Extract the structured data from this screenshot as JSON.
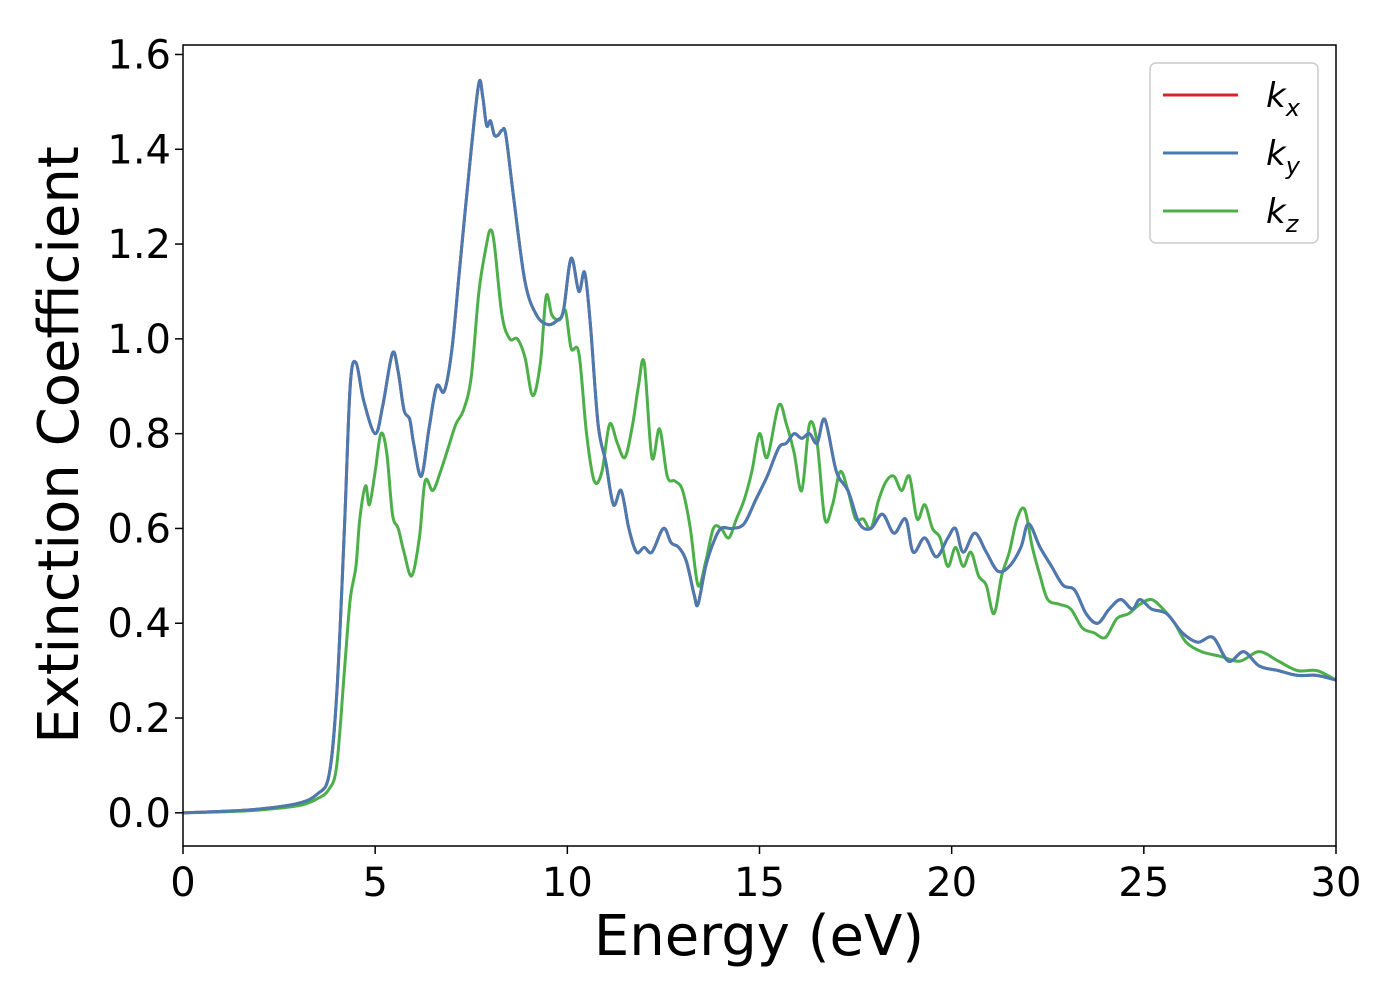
{
  "chart_data": {
    "type": "line",
    "xlabel": "Energy (eV)",
    "ylabel": "Extinction Coefficient",
    "xlim": [
      0,
      30
    ],
    "ylim": [
      -0.07,
      1.62
    ],
    "xticks": [
      0,
      5,
      10,
      15,
      20,
      25,
      30
    ],
    "yticks": [
      0.0,
      0.2,
      0.4,
      0.6,
      0.8,
      1.0,
      1.2,
      1.4,
      1.6
    ],
    "xtick_labels": [
      "0",
      "5",
      "10",
      "15",
      "20",
      "25",
      "30"
    ],
    "ytick_labels": [
      "0.0",
      "0.2",
      "0.4",
      "0.6",
      "0.8",
      "1.0",
      "1.2",
      "1.4",
      "1.6"
    ],
    "grid": false,
    "legend_position": "top-right",
    "series": [
      {
        "name": "k",
        "subscript": "x",
        "color": "#d62728",
        "x": [
          0,
          1,
          2,
          3,
          3.5,
          3.8,
          4.0,
          4.2,
          4.35,
          4.5,
          4.7,
          5.0,
          5.2,
          5.45,
          5.6,
          5.75,
          5.9,
          6.0,
          6.2,
          6.4,
          6.6,
          6.8,
          7.0,
          7.2,
          7.5,
          7.7,
          7.8,
          7.9,
          8.0,
          8.1,
          8.2,
          8.3,
          8.4,
          8.6,
          8.9,
          9.2,
          9.5,
          9.75,
          9.9,
          10.1,
          10.3,
          10.45,
          10.6,
          10.8,
          11.0,
          11.2,
          11.4,
          11.6,
          11.8,
          12.0,
          12.2,
          12.5,
          12.7,
          12.9,
          13.1,
          13.3,
          13.4,
          13.6,
          13.8,
          14.0,
          14.3,
          14.6,
          14.9,
          15.2,
          15.5,
          15.7,
          15.9,
          16.1,
          16.3,
          16.5,
          16.7,
          17.0,
          17.3,
          17.6,
          17.9,
          18.2,
          18.5,
          18.8,
          19.0,
          19.3,
          19.6,
          19.9,
          20.1,
          20.3,
          20.6,
          20.9,
          21.2,
          21.5,
          21.8,
          22.0,
          22.3,
          22.6,
          22.9,
          23.2,
          23.5,
          23.8,
          24.1,
          24.4,
          24.7,
          24.9,
          25.2,
          25.6,
          26.0,
          26.4,
          26.8,
          27.2,
          27.6,
          28.0,
          28.5,
          29.0,
          29.5,
          30.0
        ],
        "y": [
          0.0,
          0.003,
          0.008,
          0.02,
          0.04,
          0.08,
          0.25,
          0.6,
          0.9,
          0.95,
          0.87,
          0.8,
          0.86,
          0.97,
          0.93,
          0.85,
          0.83,
          0.78,
          0.71,
          0.81,
          0.9,
          0.89,
          0.98,
          1.15,
          1.4,
          1.54,
          1.51,
          1.45,
          1.46,
          1.43,
          1.43,
          1.44,
          1.43,
          1.3,
          1.12,
          1.05,
          1.03,
          1.04,
          1.06,
          1.17,
          1.1,
          1.14,
          1.03,
          0.82,
          0.74,
          0.65,
          0.68,
          0.6,
          0.55,
          0.56,
          0.55,
          0.6,
          0.57,
          0.56,
          0.53,
          0.46,
          0.44,
          0.52,
          0.57,
          0.6,
          0.6,
          0.61,
          0.66,
          0.71,
          0.77,
          0.78,
          0.8,
          0.79,
          0.8,
          0.78,
          0.83,
          0.72,
          0.68,
          0.61,
          0.6,
          0.63,
          0.59,
          0.62,
          0.55,
          0.58,
          0.54,
          0.58,
          0.6,
          0.55,
          0.59,
          0.55,
          0.51,
          0.52,
          0.56,
          0.61,
          0.56,
          0.52,
          0.48,
          0.47,
          0.42,
          0.4,
          0.43,
          0.45,
          0.43,
          0.45,
          0.43,
          0.42,
          0.38,
          0.36,
          0.37,
          0.32,
          0.34,
          0.31,
          0.3,
          0.29,
          0.29,
          0.28
        ]
      },
      {
        "name": "k",
        "subscript": "y",
        "color": "#4a7ab0",
        "x": [
          0,
          1,
          2,
          3,
          3.5,
          3.8,
          4.0,
          4.2,
          4.35,
          4.5,
          4.7,
          5.0,
          5.2,
          5.45,
          5.6,
          5.75,
          5.9,
          6.0,
          6.2,
          6.4,
          6.6,
          6.8,
          7.0,
          7.2,
          7.5,
          7.7,
          7.8,
          7.9,
          8.0,
          8.1,
          8.2,
          8.3,
          8.4,
          8.6,
          8.9,
          9.2,
          9.5,
          9.75,
          9.9,
          10.1,
          10.3,
          10.45,
          10.6,
          10.8,
          11.0,
          11.2,
          11.4,
          11.6,
          11.8,
          12.0,
          12.2,
          12.5,
          12.7,
          12.9,
          13.1,
          13.3,
          13.4,
          13.6,
          13.8,
          14.0,
          14.3,
          14.6,
          14.9,
          15.2,
          15.5,
          15.7,
          15.9,
          16.1,
          16.3,
          16.5,
          16.7,
          17.0,
          17.3,
          17.6,
          17.9,
          18.2,
          18.5,
          18.8,
          19.0,
          19.3,
          19.6,
          19.9,
          20.1,
          20.3,
          20.6,
          20.9,
          21.2,
          21.5,
          21.8,
          22.0,
          22.3,
          22.6,
          22.9,
          23.2,
          23.5,
          23.8,
          24.1,
          24.4,
          24.7,
          24.9,
          25.2,
          25.6,
          26.0,
          26.4,
          26.8,
          27.2,
          27.6,
          28.0,
          28.5,
          29.0,
          29.5,
          30.0
        ],
        "y": [
          0.0,
          0.003,
          0.008,
          0.02,
          0.04,
          0.08,
          0.25,
          0.6,
          0.9,
          0.95,
          0.87,
          0.8,
          0.86,
          0.97,
          0.93,
          0.85,
          0.83,
          0.78,
          0.71,
          0.81,
          0.9,
          0.89,
          0.98,
          1.15,
          1.4,
          1.54,
          1.51,
          1.45,
          1.46,
          1.43,
          1.43,
          1.44,
          1.43,
          1.3,
          1.12,
          1.05,
          1.03,
          1.04,
          1.06,
          1.17,
          1.1,
          1.14,
          1.03,
          0.82,
          0.74,
          0.65,
          0.68,
          0.6,
          0.55,
          0.56,
          0.55,
          0.6,
          0.57,
          0.56,
          0.53,
          0.46,
          0.44,
          0.52,
          0.57,
          0.6,
          0.6,
          0.61,
          0.66,
          0.71,
          0.77,
          0.78,
          0.8,
          0.79,
          0.8,
          0.78,
          0.83,
          0.72,
          0.68,
          0.61,
          0.6,
          0.63,
          0.59,
          0.62,
          0.55,
          0.58,
          0.54,
          0.58,
          0.6,
          0.55,
          0.59,
          0.55,
          0.51,
          0.52,
          0.56,
          0.61,
          0.56,
          0.52,
          0.48,
          0.47,
          0.42,
          0.4,
          0.43,
          0.45,
          0.43,
          0.45,
          0.43,
          0.42,
          0.38,
          0.36,
          0.37,
          0.32,
          0.34,
          0.31,
          0.3,
          0.29,
          0.29,
          0.28
        ]
      },
      {
        "name": "k",
        "subscript": "z",
        "color": "#4daf4a",
        "x": [
          0,
          1,
          2,
          3,
          3.5,
          3.8,
          4.0,
          4.2,
          4.35,
          4.5,
          4.6,
          4.75,
          4.85,
          5.0,
          5.15,
          5.3,
          5.45,
          5.6,
          5.75,
          5.95,
          6.15,
          6.3,
          6.5,
          6.7,
          6.9,
          7.1,
          7.3,
          7.5,
          7.7,
          7.9,
          8.0,
          8.1,
          8.3,
          8.5,
          8.7,
          8.9,
          9.1,
          9.3,
          9.45,
          9.6,
          9.8,
          9.95,
          10.1,
          10.3,
          10.5,
          10.7,
          10.9,
          11.1,
          11.3,
          11.5,
          11.7,
          11.85,
          12.0,
          12.2,
          12.4,
          12.6,
          12.8,
          13.0,
          13.2,
          13.4,
          13.6,
          13.8,
          14.0,
          14.2,
          14.4,
          14.6,
          14.8,
          15.0,
          15.2,
          15.5,
          15.7,
          15.9,
          16.1,
          16.3,
          16.5,
          16.7,
          16.9,
          17.1,
          17.3,
          17.5,
          17.7,
          17.9,
          18.1,
          18.3,
          18.5,
          18.7,
          18.9,
          19.1,
          19.3,
          19.5,
          19.7,
          19.9,
          20.1,
          20.3,
          20.5,
          20.7,
          20.9,
          21.1,
          21.3,
          21.5,
          21.7,
          21.9,
          22.1,
          22.3,
          22.5,
          22.8,
          23.1,
          23.4,
          23.7,
          24.0,
          24.3,
          24.6,
          24.9,
          25.2,
          25.5,
          25.8,
          26.1,
          26.5,
          27.0,
          27.5,
          28.0,
          28.5,
          29.0,
          29.5,
          30.0
        ],
        "y": [
          0.0,
          0.002,
          0.006,
          0.015,
          0.03,
          0.05,
          0.1,
          0.3,
          0.45,
          0.52,
          0.62,
          0.69,
          0.65,
          0.72,
          0.8,
          0.76,
          0.63,
          0.6,
          0.55,
          0.5,
          0.58,
          0.7,
          0.68,
          0.72,
          0.77,
          0.82,
          0.85,
          0.92,
          1.1,
          1.2,
          1.23,
          1.2,
          1.05,
          1.0,
          1.0,
          0.96,
          0.88,
          0.95,
          1.09,
          1.05,
          1.04,
          1.06,
          0.98,
          0.97,
          0.8,
          0.7,
          0.72,
          0.82,
          0.78,
          0.75,
          0.82,
          0.9,
          0.95,
          0.75,
          0.81,
          0.71,
          0.7,
          0.68,
          0.6,
          0.48,
          0.53,
          0.6,
          0.6,
          0.58,
          0.62,
          0.66,
          0.72,
          0.8,
          0.75,
          0.86,
          0.82,
          0.76,
          0.68,
          0.82,
          0.78,
          0.62,
          0.65,
          0.72,
          0.68,
          0.62,
          0.62,
          0.6,
          0.66,
          0.7,
          0.71,
          0.68,
          0.71,
          0.62,
          0.65,
          0.6,
          0.58,
          0.52,
          0.56,
          0.52,
          0.55,
          0.5,
          0.48,
          0.42,
          0.5,
          0.55,
          0.62,
          0.64,
          0.56,
          0.5,
          0.45,
          0.44,
          0.43,
          0.39,
          0.38,
          0.37,
          0.41,
          0.42,
          0.44,
          0.45,
          0.43,
          0.4,
          0.36,
          0.34,
          0.33,
          0.32,
          0.34,
          0.32,
          0.3,
          0.3,
          0.28
        ]
      }
    ]
  }
}
